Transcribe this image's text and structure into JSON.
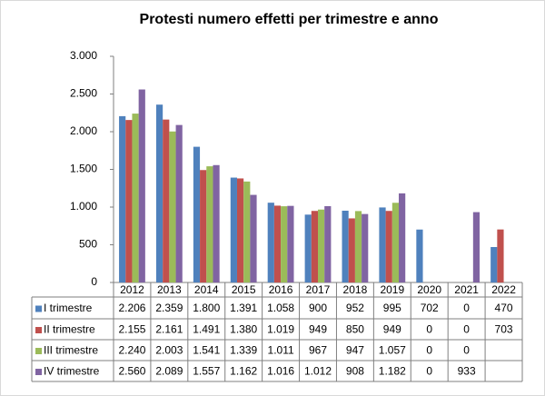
{
  "chart_data": {
    "type": "bar",
    "title": "Protesti numero effetti per trimestre e anno",
    "categories": [
      "2012",
      "2013",
      "2014",
      "2015",
      "2016",
      "2017",
      "2018",
      "2019",
      "2020",
      "2021",
      "2022"
    ],
    "series": [
      {
        "name": "I trimestre",
        "color": "#4f81bd",
        "values": [
          2206,
          2359,
          1800,
          1391,
          1058,
          900,
          952,
          995,
          702,
          0,
          470
        ],
        "value_labels": [
          "2.206",
          "2.359",
          "1.800",
          "1.391",
          "1.058",
          "900",
          "952",
          "995",
          "702",
          "0",
          "470"
        ]
      },
      {
        "name": "II trimestre",
        "color": "#c0504d",
        "values": [
          2155,
          2161,
          1491,
          1380,
          1019,
          949,
          850,
          949,
          0,
          0,
          703
        ],
        "value_labels": [
          "2.155",
          "2.161",
          "1.491",
          "1.380",
          "1.019",
          "949",
          "850",
          "949",
          "0",
          "0",
          "703"
        ]
      },
      {
        "name": "III trimestre",
        "color": "#9bbb59",
        "values": [
          2240,
          2003,
          1541,
          1339,
          1011,
          967,
          947,
          1057,
          0,
          0,
          null
        ],
        "value_labels": [
          "2.240",
          "2.003",
          "1.541",
          "1.339",
          "1.011",
          "967",
          "947",
          "1.057",
          "0",
          "0",
          null
        ]
      },
      {
        "name": "IV trimestre",
        "color": "#8064a2",
        "values": [
          2560,
          2089,
          1557,
          1162,
          1016,
          1012,
          908,
          1182,
          0,
          933,
          null
        ],
        "value_labels": [
          "2.560",
          "2.089",
          "1.557",
          "1.162",
          "1.016",
          "1.012",
          "908",
          "1.182",
          "0",
          "933",
          null
        ]
      }
    ],
    "ylim": [
      0,
      3000
    ],
    "yticks": [
      0,
      500,
      {
        "value": 1000,
        "label": "1.000"
      },
      {
        "value": 1500,
        "label": "1.500"
      },
      {
        "value": 2000,
        "label": "2.000"
      },
      {
        "value": 2500,
        "label": "2.500"
      },
      {
        "value": 3000,
        "label": "3.000"
      }
    ],
    "grid": false
  }
}
